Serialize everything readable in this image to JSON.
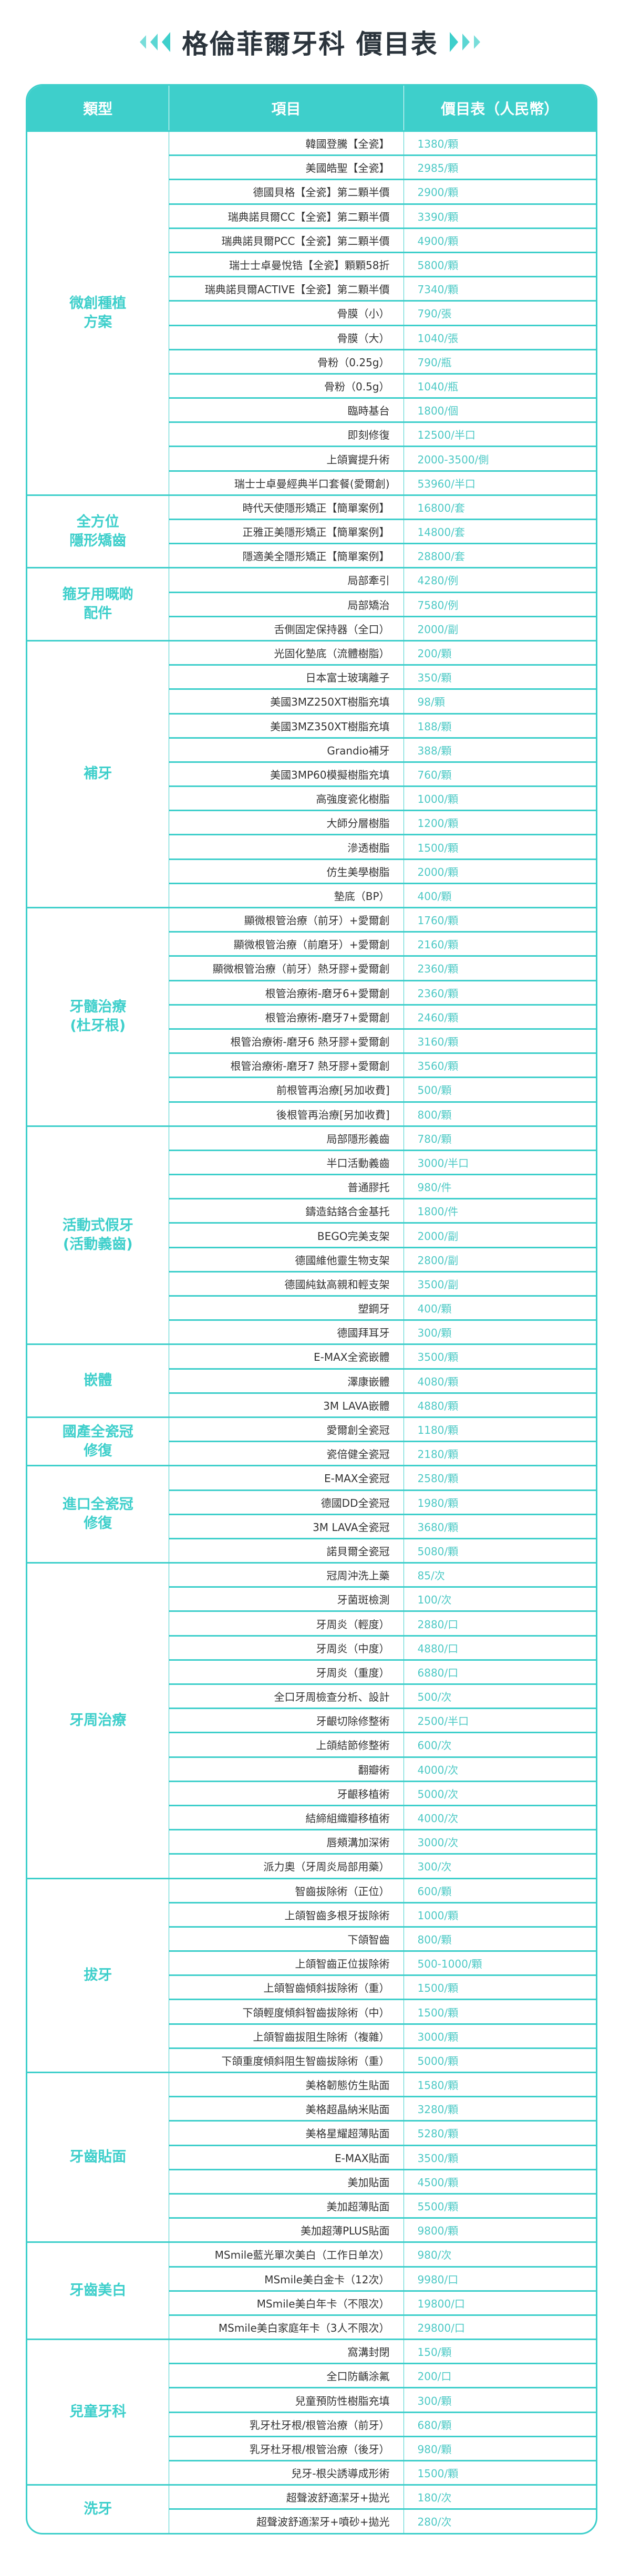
{
  "title": "格倫菲爾牙科 價目表",
  "colors": {
    "accent": "#3ecfcb",
    "price_text": "#4cc9c5",
    "title_text": "#2b343c"
  },
  "icons": {
    "left": "triple-chevron-left-icon",
    "right": "triple-chevron-right-icon"
  },
  "table": {
    "headers": [
      "類型",
      "項目",
      "價目表（人民幣）"
    ],
    "categories": [
      {
        "name": "微創種植\n方案",
        "items": [
          {
            "name": "韓國登騰【全瓷】",
            "price": "1380/顆"
          },
          {
            "name": "美國皓聖【全瓷】",
            "price": "2985/顆"
          },
          {
            "name": "德國貝格【全瓷】第二顆半價",
            "price": "2900/顆"
          },
          {
            "name": "瑞典諾貝爾CC【全瓷】第二顆半價",
            "price": "3390/顆"
          },
          {
            "name": "瑞典諾貝爾PCC【全瓷】第二顆半價",
            "price": "4900/顆"
          },
          {
            "name": "瑞士士卓曼悅锆【全瓷】顆顆58折",
            "price": "5800/顆"
          },
          {
            "name": "瑞典諾貝爾ACTIVE【全瓷】第二顆半價",
            "price": "7340/顆"
          },
          {
            "name": "骨膜（小）",
            "price": "790/張"
          },
          {
            "name": "骨膜（大）",
            "price": "1040/張"
          },
          {
            "name": "骨粉（0.25g）",
            "price": "790/瓶"
          },
          {
            "name": "骨粉（0.5g）",
            "price": "1040/瓶"
          },
          {
            "name": "臨時基台",
            "price": "1800/個"
          },
          {
            "name": "即刻修復",
            "price": "12500/半口"
          },
          {
            "name": "上頜竇提升術",
            "price": "2000-3500/側"
          },
          {
            "name": "瑞士士卓曼經典半口套餐(愛爾創)",
            "price": "53960/半口"
          }
        ]
      },
      {
        "name": "全方位\n隱形矯齒",
        "items": [
          {
            "name": "時代天使隱形矯正【簡單案例】",
            "price": "16800/套"
          },
          {
            "name": "正雅正美隱形矯正【簡單案例】",
            "price": "14800/套"
          },
          {
            "name": "隱適美全隱形矯正【簡單案例】",
            "price": "28800/套"
          }
        ]
      },
      {
        "name": "箍牙用嘅啲\n配件",
        "items": [
          {
            "name": "局部牽引",
            "price": "4280/例"
          },
          {
            "name": "局部矯治",
            "price": "7580/例"
          },
          {
            "name": "舌側固定保持器（全口）",
            "price": "2000/副"
          }
        ]
      },
      {
        "name": "補牙",
        "items": [
          {
            "name": "光固化墊底（流體樹脂）",
            "price": "200/顆"
          },
          {
            "name": "日本富士玻璃離子",
            "price": "350/顆"
          },
          {
            "name": "美國3MZ250XT樹脂充填",
            "price": "98/顆"
          },
          {
            "name": "美國3MZ350XT樹脂充填",
            "price": "188/顆"
          },
          {
            "name": "Grandio補牙",
            "price": "388/顆"
          },
          {
            "name": "美國3MP60模擬樹脂充填",
            "price": "760/顆"
          },
          {
            "name": "高強度瓷化樹脂",
            "price": "1000/顆"
          },
          {
            "name": "大師分層樹脂",
            "price": "1200/顆"
          },
          {
            "name": "滲透樹脂",
            "price": "1500/顆"
          },
          {
            "name": "仿生美學樹脂",
            "price": "2000/顆"
          },
          {
            "name": "墊底（BP）",
            "price": "400/顆"
          }
        ]
      },
      {
        "name": "牙髓治療\n(杜牙根)",
        "items": [
          {
            "name": "顯微根管治療（前牙）+愛爾創",
            "price": "1760/顆"
          },
          {
            "name": "顯微根管治療（前磨牙）+愛爾創",
            "price": "2160/顆"
          },
          {
            "name": "顯微根管治療（前牙）熱牙膠+愛爾創",
            "price": "2360/顆"
          },
          {
            "name": "根管治療術-磨牙6+愛爾創",
            "price": "2360/顆"
          },
          {
            "name": "根管治療術-磨牙7+愛爾創",
            "price": "2460/顆"
          },
          {
            "name": "根管治療術-磨牙6 熱牙膠+愛爾創",
            "price": "3160/顆"
          },
          {
            "name": "根管治療術-磨牙7 熱牙膠+愛爾創",
            "price": "3560/顆"
          },
          {
            "name": "前根管再治療[另加收費]",
            "price": "500/顆"
          },
          {
            "name": "後根管再治療[另加收費]",
            "price": "800/顆"
          }
        ]
      },
      {
        "name": "活動式假牙\n(活動義齒)",
        "items": [
          {
            "name": "局部隱形義齒",
            "price": "780/顆"
          },
          {
            "name": "半口活動義齒",
            "price": "3000/半口"
          },
          {
            "name": "普通膠托",
            "price": "980/件"
          },
          {
            "name": "鑄造鈷鉻合金基托",
            "price": "1800/件"
          },
          {
            "name": "BEGO完美支架",
            "price": "2000/副"
          },
          {
            "name": "德國維他靈生物支架",
            "price": "2800/副"
          },
          {
            "name": "德國純鈦高親和輕支架",
            "price": "3500/副"
          },
          {
            "name": "塑鋼牙",
            "price": "400/顆"
          },
          {
            "name": "德國拜耳牙",
            "price": "300/顆"
          }
        ]
      },
      {
        "name": "嵌體",
        "items": [
          {
            "name": "E-MAX全瓷嵌體",
            "price": "3500/顆"
          },
          {
            "name": "澤康嵌體",
            "price": "4080/顆"
          },
          {
            "name": "3M LAVA嵌體",
            "price": "4880/顆"
          }
        ]
      },
      {
        "name": "國產全瓷冠\n修復",
        "items": [
          {
            "name": "愛爾創全瓷冠",
            "price": "1180/顆"
          },
          {
            "name": "瓷倍健全瓷冠",
            "price": "2180/顆"
          }
        ]
      },
      {
        "name": "進口全瓷冠\n修復",
        "items": [
          {
            "name": "E-MAX全瓷冠",
            "price": "2580/顆"
          },
          {
            "name": "德國DD全瓷冠",
            "price": "1980/顆"
          },
          {
            "name": "3M LAVA全瓷冠",
            "price": "3680/顆"
          },
          {
            "name": "諾貝爾全瓷冠",
            "price": "5080/顆"
          }
        ]
      },
      {
        "name": "牙周治療",
        "items": [
          {
            "name": "冠周沖洗上藥",
            "price": "85/次"
          },
          {
            "name": "牙菌斑檢測",
            "price": "100/次"
          },
          {
            "name": "牙周炎（輕度）",
            "price": "2880/口"
          },
          {
            "name": "牙周炎（中度）",
            "price": "4880/口"
          },
          {
            "name": "牙周炎（重度）",
            "price": "6880/口"
          },
          {
            "name": "全口牙周檢查分析、設計",
            "price": "500/次"
          },
          {
            "name": "牙齦切除修整術",
            "price": "2500/半口"
          },
          {
            "name": "上頜結節修整術",
            "price": "600/次"
          },
          {
            "name": "翻瓣術",
            "price": "4000/次"
          },
          {
            "name": "牙齦移植術",
            "price": "5000/次"
          },
          {
            "name": "結締組織瓣移植術",
            "price": "4000/次"
          },
          {
            "name": "唇頰溝加深術",
            "price": "3000/次"
          },
          {
            "name": "派力奧（牙周炎局部用藥）",
            "price": "300/次"
          }
        ]
      },
      {
        "name": "拔牙",
        "items": [
          {
            "name": "智齒拔除術（正位）",
            "price": "600/顆"
          },
          {
            "name": "上頜智齒多根牙拔除術",
            "price": "1000/顆"
          },
          {
            "name": "下頜智齒",
            "price": "800/顆"
          },
          {
            "name": "上頜智齒正位拔除術",
            "price": "500-1000/顆"
          },
          {
            "name": "上頜智齒傾斜拔除術（重）",
            "price": "1500/顆"
          },
          {
            "name": "下頜輕度傾斜智齒拔除術（中）",
            "price": "1500/顆"
          },
          {
            "name": "上頜智齒拔阻生除術（複雜）",
            "price": "3000/顆"
          },
          {
            "name": "下頜重度傾斜阻生智齒拔除術（重）",
            "price": "5000/顆"
          }
        ]
      },
      {
        "name": "牙齒貼面",
        "items": [
          {
            "name": "美格韌態仿生貼面",
            "price": "1580/顆"
          },
          {
            "name": "美格超晶納米貼面",
            "price": "3280/顆"
          },
          {
            "name": "美格星耀超薄貼面",
            "price": "5280/顆"
          },
          {
            "name": "E-MAX貼面",
            "price": "3500/顆"
          },
          {
            "name": "美加貼面",
            "price": "4500/顆"
          },
          {
            "name": "美加超薄貼面",
            "price": "5500/顆"
          },
          {
            "name": "美加超薄PLUS貼面",
            "price": "9800/顆"
          }
        ]
      },
      {
        "name": "牙齒美白",
        "items": [
          {
            "name": "MSmile藍光單次美白（工作日单次）",
            "price": "980/次"
          },
          {
            "name": "MSmile美白金卡（12次）",
            "price": "9980/口"
          },
          {
            "name": "MSmile美白年卡（不限次）",
            "price": "19800/口"
          },
          {
            "name": "MSmile美白家庭年卡（3人不限次）",
            "price": "29800/口"
          }
        ]
      },
      {
        "name": "兒童牙科",
        "items": [
          {
            "name": "窩溝封閉",
            "price": "150/顆"
          },
          {
            "name": "全口防齲涂氟",
            "price": "200/口"
          },
          {
            "name": "兒童預防性樹脂充填",
            "price": "300/顆"
          },
          {
            "name": "乳牙杜牙根/根管治療（前牙）",
            "price": "680/顆"
          },
          {
            "name": "乳牙杜牙根/根管治療（後牙）",
            "price": "980/顆"
          },
          {
            "name": "兒牙-根尖誘導成形術",
            "price": "1500/顆"
          }
        ]
      },
      {
        "name": "洗牙",
        "items": [
          {
            "name": "超聲波舒適潔牙+拋光",
            "price": "180/次"
          },
          {
            "name": "超聲波舒適潔牙+噴砂+拋光",
            "price": "280/次"
          }
        ]
      }
    ]
  }
}
